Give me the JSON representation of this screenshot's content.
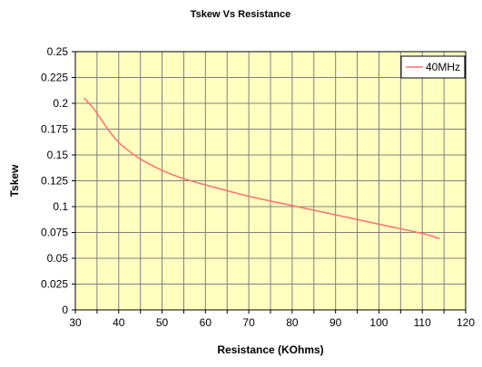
{
  "chart_data": {
    "type": "line",
    "title": "Tskew Vs Resistance",
    "xlabel": "Resistance (KOhms)",
    "ylabel": "Tskew",
    "xlim": [
      30,
      120
    ],
    "ylim": [
      0,
      0.25
    ],
    "x_ticks": [
      30,
      40,
      50,
      60,
      70,
      80,
      90,
      100,
      110,
      120
    ],
    "y_ticks": [
      0,
      0.025,
      0.05,
      0.075,
      0.1,
      0.125,
      0.15,
      0.175,
      0.2,
      0.225,
      0.25
    ],
    "x_minor_step": 5,
    "grid": true,
    "legend_position": "top-right",
    "colors": {
      "plot_background": "#ffffc0",
      "grid": "#808080",
      "frame": "#000000"
    },
    "series": [
      {
        "name": "40MHz",
        "color": "#ff7070",
        "x": [
          32,
          34,
          36,
          38,
          40,
          42,
          45,
          50,
          55,
          60,
          70,
          80,
          90,
          100,
          110,
          114
        ],
        "y": [
          0.205,
          0.196,
          0.184,
          0.172,
          0.162,
          0.155,
          0.146,
          0.135,
          0.127,
          0.121,
          0.11,
          0.101,
          0.092,
          0.083,
          0.074,
          0.069
        ]
      }
    ]
  }
}
